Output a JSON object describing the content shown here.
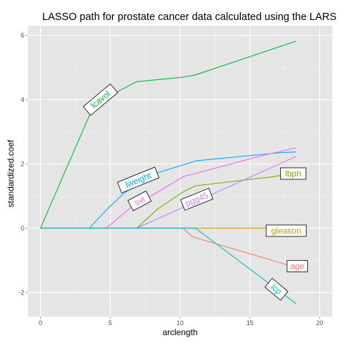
{
  "chart_data": {
    "type": "line",
    "title": "LASSO path for prostate cancer data calculated using the LARS",
    "xlabel": "arclength",
    "ylabel": "standardized.coef",
    "xlim": [
      -0.9,
      20.9
    ],
    "ylim": [
      -2.75,
      6.3
    ],
    "xticks": [
      0,
      5,
      10,
      15,
      20
    ],
    "yticks": [
      -2,
      0,
      2,
      4,
      6
    ],
    "xtick_labels": [
      "0",
      "5",
      "10",
      "15",
      "20"
    ],
    "ytick_labels": [
      "-2",
      "0",
      "2",
      "4",
      "6"
    ],
    "grid": true,
    "legend": "none (labels on lines)",
    "background_color": "#e5e5e5",
    "series": [
      {
        "name": "lcavol",
        "color": "#00BA38",
        "label_x": 4.3,
        "label_y": 4.0,
        "label_angle": -40,
        "points": [
          [
            0,
            0
          ],
          [
            3.5,
            3.5
          ],
          [
            4.1,
            4.0
          ],
          [
            5.3,
            4.2
          ],
          [
            6.9,
            4.56
          ],
          [
            10.2,
            4.7
          ],
          [
            11.1,
            4.77
          ],
          [
            18.3,
            5.82
          ]
        ]
      },
      {
        "name": "lweight",
        "color": "#00A9FF",
        "label_x": 7.0,
        "label_y": 1.5,
        "label_angle": -22,
        "points": [
          [
            0,
            0
          ],
          [
            3.5,
            0
          ],
          [
            4.8,
            0.6
          ],
          [
            6.0,
            1.1
          ],
          [
            8.2,
            1.7
          ],
          [
            11.2,
            2.1
          ],
          [
            17.2,
            2.35
          ],
          [
            18.3,
            2.37
          ]
        ]
      },
      {
        "name": "svi",
        "color": "#F564E3",
        "label_x": 7.1,
        "label_y": 0.85,
        "label_angle": -28,
        "points": [
          [
            0,
            0
          ],
          [
            4.7,
            0
          ],
          [
            6.5,
            0.65
          ],
          [
            8.3,
            1.1
          ],
          [
            10.3,
            1.62
          ],
          [
            11.1,
            1.7
          ],
          [
            15.8,
            2.25
          ],
          [
            18.3,
            2.5
          ]
        ]
      },
      {
        "name": "lbph",
        "color": "#7CAE00",
        "label_x": 18.1,
        "label_y": 1.7,
        "label_angle": 0,
        "points": [
          [
            0,
            0
          ],
          [
            6.9,
            0
          ],
          [
            8.4,
            0.6
          ],
          [
            10.3,
            1.15
          ],
          [
            11.1,
            1.32
          ],
          [
            16.6,
            1.6
          ],
          [
            18.3,
            1.72
          ]
        ]
      },
      {
        "name": "pgg45",
        "color": "#C77CFF",
        "label_x": 11.2,
        "label_y": 0.9,
        "label_angle": -22,
        "points": [
          [
            0,
            0
          ],
          [
            6.9,
            0
          ],
          [
            18.3,
            2.23
          ]
        ]
      },
      {
        "name": "gleason",
        "color": "#CD9600",
        "label_x": 17.6,
        "label_y": -0.08,
        "label_angle": 0,
        "points": [
          [
            0,
            0
          ],
          [
            18.3,
            0
          ]
        ]
      },
      {
        "name": "age",
        "color": "#F8766D",
        "label_x": 18.4,
        "label_y": -1.18,
        "label_angle": 0,
        "points": [
          [
            0,
            0
          ],
          [
            10.2,
            0
          ],
          [
            10.9,
            -0.27
          ],
          [
            18.3,
            -1.22
          ]
        ]
      },
      {
        "name": "lcp",
        "color": "#00BFC4",
        "label_x": 16.9,
        "label_y": -1.9,
        "label_angle": 40,
        "points": [
          [
            0,
            0
          ],
          [
            11.1,
            0
          ],
          [
            18.3,
            -2.35
          ]
        ]
      }
    ]
  }
}
